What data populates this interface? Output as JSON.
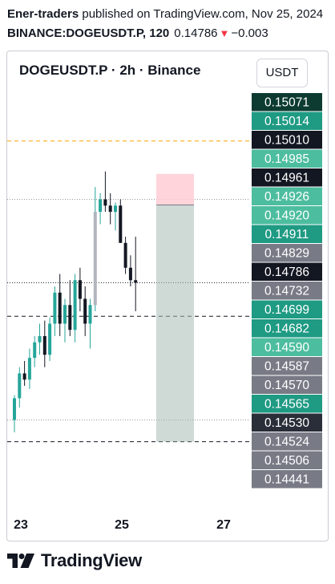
{
  "header": {
    "author": "Ener-traders",
    "published_text": "published on TradingView.com, Nov 25, 2024",
    "symbol_line": "BINANCE:DOGEUSDT.P, 120",
    "last_price": "0.14786",
    "change": "−0.003"
  },
  "chart": {
    "title": "DOGEUSDT.P · 2h · Binance",
    "currency_button": "USDT"
  },
  "footer": {
    "brand": "TradingView"
  },
  "colors": {
    "up": "#26a69a",
    "down": "#131722",
    "neutral_candle": "#b2b5be",
    "orange_line": "#f7a600",
    "profit_zone": "#a8bcb7",
    "stop_zone": "#ffcdd3"
  },
  "chart_data": {
    "type": "candlestick",
    "title": "DOGEUSDT.P · 2h · Binance",
    "ylim": [
      0.14425,
      0.15095
    ],
    "x_ticks": [
      "23",
      "25",
      "27"
    ],
    "price_labels": [
      {
        "value": "0.15071",
        "bg": "#0d3b31",
        "fg": "#ffffff"
      },
      {
        "value": "0.15014",
        "bg": "#1f9a83",
        "fg": "#ffffff"
      },
      {
        "value": "0.15010",
        "bg": "#131722",
        "fg": "#ffffff"
      },
      {
        "value": "0.14985",
        "bg": "#4dbd9f",
        "fg": "#ffffff"
      },
      {
        "value": "0.14961",
        "bg": "#131722",
        "fg": "#ffffff"
      },
      {
        "value": "0.14926",
        "bg": "#4dbd9f",
        "fg": "#ffffff"
      },
      {
        "value": "0.14920",
        "bg": "#4dbd9f",
        "fg": "#ffffff"
      },
      {
        "value": "0.14911",
        "bg": "#1f9a83",
        "fg": "#ffffff"
      },
      {
        "value": "0.14829",
        "bg": "#787b86",
        "fg": "#ffffff"
      },
      {
        "value": "0.14786",
        "bg": "#131722",
        "fg": "#ffffff"
      },
      {
        "value": "0.14732",
        "bg": "#787b86",
        "fg": "#ffffff"
      },
      {
        "value": "0.14699",
        "bg": "#1f9a83",
        "fg": "#ffffff"
      },
      {
        "value": "0.14682",
        "bg": "#1f9a83",
        "fg": "#ffffff"
      },
      {
        "value": "0.14590",
        "bg": "#4dbd9f",
        "fg": "#ffffff"
      },
      {
        "value": "0.14587",
        "bg": "#787b86",
        "fg": "#ffffff"
      },
      {
        "value": "0.14570",
        "bg": "#787b86",
        "fg": "#ffffff"
      },
      {
        "value": "0.14565",
        "bg": "#1f9a83",
        "fg": "#ffffff"
      },
      {
        "value": "0.14530",
        "bg": "#2a2e39",
        "fg": "#ffffff"
      },
      {
        "value": "0.14524",
        "bg": "#787b86",
        "fg": "#ffffff"
      },
      {
        "value": "0.14506",
        "bg": "#787b86",
        "fg": "#ffffff"
      },
      {
        "value": "0.14441",
        "bg": "#787b86",
        "fg": "#ffffff"
      }
    ],
    "lines": [
      {
        "price": 0.15014,
        "style": "dashed",
        "color": "orange"
      },
      {
        "price": 0.1492,
        "style": "dotted",
        "color": "gray"
      },
      {
        "price": 0.14786,
        "style": "dotted",
        "color": "dark"
      },
      {
        "price": 0.14732,
        "style": "dashed",
        "color": "dark"
      },
      {
        "price": 0.14565,
        "style": "dotted",
        "color": "gray"
      },
      {
        "price": 0.1453,
        "style": "dashed",
        "color": "dark"
      }
    ],
    "position": {
      "type": "short",
      "entry": 0.14911,
      "stop": 0.14961,
      "target": 0.1453
    },
    "candles": [
      {
        "o": 0.14565,
        "h": 0.14605,
        "l": 0.14545,
        "c": 0.146
      },
      {
        "o": 0.146,
        "h": 0.1465,
        "l": 0.14585,
        "c": 0.1464
      },
      {
        "o": 0.1464,
        "h": 0.1466,
        "l": 0.1462,
        "c": 0.1463
      },
      {
        "o": 0.1463,
        "h": 0.1468,
        "l": 0.14615,
        "c": 0.14665
      },
      {
        "o": 0.14665,
        "h": 0.147,
        "l": 0.1465,
        "c": 0.1469
      },
      {
        "o": 0.1469,
        "h": 0.1472,
        "l": 0.1467,
        "c": 0.147
      },
      {
        "o": 0.147,
        "h": 0.14725,
        "l": 0.1465,
        "c": 0.1467
      },
      {
        "o": 0.1467,
        "h": 0.1473,
        "l": 0.1466,
        "c": 0.1472
      },
      {
        "o": 0.1472,
        "h": 0.1478,
        "l": 0.147,
        "c": 0.1477
      },
      {
        "o": 0.1477,
        "h": 0.148,
        "l": 0.147,
        "c": 0.1472
      },
      {
        "o": 0.1472,
        "h": 0.1476,
        "l": 0.1469,
        "c": 0.1475
      },
      {
        "o": 0.1475,
        "h": 0.1479,
        "l": 0.147,
        "c": 0.1471
      },
      {
        "o": 0.1471,
        "h": 0.148,
        "l": 0.1469,
        "c": 0.1479
      },
      {
        "o": 0.1479,
        "h": 0.1481,
        "l": 0.1474,
        "c": 0.1476
      },
      {
        "o": 0.1476,
        "h": 0.1478,
        "l": 0.147,
        "c": 0.1472
      },
      {
        "o": 0.1472,
        "h": 0.1476,
        "l": 0.1468,
        "c": 0.1475
      },
      {
        "o": 0.1475,
        "h": 0.1494,
        "l": 0.1474,
        "c": 0.149
      },
      {
        "o": 0.149,
        "h": 0.1493,
        "l": 0.1488,
        "c": 0.1492
      },
      {
        "o": 0.1492,
        "h": 0.14965,
        "l": 0.149,
        "c": 0.1491
      },
      {
        "o": 0.1491,
        "h": 0.1493,
        "l": 0.1488,
        "c": 0.149
      },
      {
        "o": 0.149,
        "h": 0.14915,
        "l": 0.1487,
        "c": 0.1491
      },
      {
        "o": 0.1491,
        "h": 0.1492,
        "l": 0.1485,
        "c": 0.1485
      },
      {
        "o": 0.1485,
        "h": 0.1486,
        "l": 0.148,
        "c": 0.1481
      },
      {
        "o": 0.1481,
        "h": 0.1483,
        "l": 0.1478,
        "c": 0.1479
      },
      {
        "o": 0.1479,
        "h": 0.1486,
        "l": 0.1474,
        "c": 0.14786
      }
    ]
  }
}
